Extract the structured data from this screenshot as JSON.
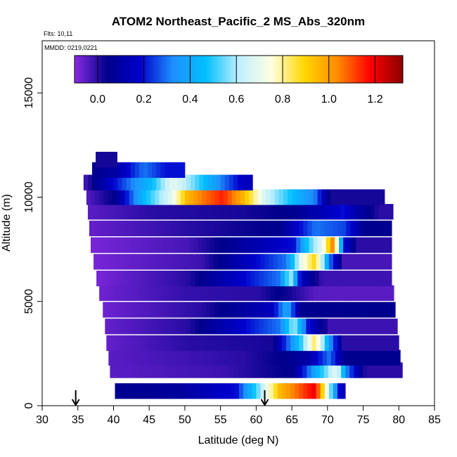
{
  "chart_data": {
    "type": "heatmap",
    "title": "ATOM2 Northeast_Pacific_2 MS_Abs_320nm",
    "annotations": [
      "Flts: 10,11",
      "MMDD: 0219,0221"
    ],
    "xlabel": "Latitude (deg N)",
    "ylabel": "Altitude (m)",
    "xlim": [
      30,
      85
    ],
    "ylim": [
      0,
      17500
    ],
    "x_ticks": [
      30,
      35,
      40,
      45,
      50,
      55,
      60,
      65,
      70,
      75,
      80,
      85
    ],
    "y_ticks": [
      0,
      5000,
      10000,
      15000
    ],
    "colorbar": {
      "range": [
        -0.1,
        1.32
      ],
      "ticks": [
        0.0,
        0.2,
        0.4,
        0.6,
        0.8,
        1.0,
        1.2
      ],
      "tick_labels": [
        "0.0",
        "0.2",
        "0.4",
        "0.6",
        "0.8",
        "1.0",
        "1.2"
      ],
      "colors": [
        "#8a2be2",
        "#00008b",
        "#0000cd",
        "#1e90ff",
        "#00bfff",
        "#bfefff",
        "#ffffe0",
        "#ffd700",
        "#ff8c00",
        "#ff0000",
        "#8b0000"
      ]
    },
    "grid": false,
    "legend": "colorbar-top",
    "arrow_markers_latitude": [
      34.7,
      61.2
    ],
    "rows": [
      {
        "alt": 700,
        "lat_start": 40.2,
        "lat_end": 72.5,
        "segments": [
          [
            40.2,
            0.05
          ],
          [
            49,
            0.08
          ],
          [
            57,
            0.2
          ],
          [
            60,
            0.55
          ],
          [
            63,
            0.95
          ],
          [
            66,
            1.1
          ],
          [
            68,
            1.2
          ],
          [
            70,
            0.6
          ],
          [
            71.5,
            0.15
          ]
        ]
      },
      {
        "alt": 1700,
        "lat_start": 39.5,
        "lat_end": 80.5,
        "segments": [
          [
            39.5,
            -0.05
          ],
          [
            55,
            -0.02
          ],
          [
            65,
            0.05
          ],
          [
            68,
            0.4
          ],
          [
            71,
            0.7
          ],
          [
            72.5,
            0.3
          ],
          [
            75,
            0.0
          ]
        ]
      },
      {
        "alt": 2300,
        "lat_start": 39.3,
        "lat_end": 80.2,
        "segments": [
          [
            39.3,
            -0.05
          ],
          [
            58,
            0.0
          ],
          [
            64,
            0.05
          ],
          [
            67,
            0.1
          ],
          [
            70,
            0.3
          ],
          [
            72,
            0.05
          ]
        ]
      },
      {
        "alt": 3000,
        "lat_start": 39.0,
        "lat_end": 80.0,
        "segments": [
          [
            39.0,
            -0.06
          ],
          [
            50,
            0.0
          ],
          [
            62,
            0.02
          ],
          [
            66,
            0.5
          ],
          [
            68,
            0.85
          ],
          [
            70,
            0.35
          ],
          [
            72,
            0.0
          ]
        ]
      },
      {
        "alt": 3800,
        "lat_start": 38.8,
        "lat_end": 79.8,
        "segments": [
          [
            38.8,
            -0.06
          ],
          [
            50,
            0.0
          ],
          [
            63,
            0.3
          ],
          [
            65,
            0.6
          ],
          [
            67,
            0.2
          ],
          [
            70,
            -0.02
          ]
        ]
      },
      {
        "alt": 4600,
        "lat_start": 38.5,
        "lat_end": 79.5,
        "segments": [
          [
            38.5,
            -0.07
          ],
          [
            52,
            0.0
          ],
          [
            62,
            0.15
          ],
          [
            64,
            0.4
          ],
          [
            66,
            0.05
          ]
        ]
      },
      {
        "alt": 5400,
        "lat_start": 38.0,
        "lat_end": 79.3,
        "segments": [
          [
            38.0,
            -0.07
          ],
          [
            50,
            -0.01
          ],
          [
            60,
            0.0
          ],
          [
            63,
            0.05
          ],
          [
            68,
            -0.05
          ]
        ]
      },
      {
        "alt": 6100,
        "lat_start": 37.6,
        "lat_end": 79.0,
        "segments": [
          [
            37.6,
            -0.08
          ],
          [
            50,
            0.0
          ],
          [
            63,
            0.3
          ],
          [
            64.5,
            0.6
          ],
          [
            66,
            0.15
          ],
          [
            69,
            -0.02
          ]
        ]
      },
      {
        "alt": 6900,
        "lat_start": 37.2,
        "lat_end": 79.0,
        "segments": [
          [
            37.2,
            -0.08
          ],
          [
            52,
            -0.02
          ],
          [
            64,
            0.3
          ],
          [
            66,
            0.7
          ],
          [
            68,
            0.9
          ],
          [
            70,
            0.3
          ],
          [
            72,
            -0.03
          ]
        ]
      },
      {
        "alt": 7700,
        "lat_start": 36.8,
        "lat_end": 79.0,
        "segments": [
          [
            36.8,
            -0.08
          ],
          [
            50,
            -0.03
          ],
          [
            65,
            0.2
          ],
          [
            67,
            0.5
          ],
          [
            69,
            0.7
          ],
          [
            70.5,
            1.05
          ],
          [
            72,
            0.2
          ],
          [
            74,
            0.0
          ]
        ]
      },
      {
        "alt": 8500,
        "lat_start": 36.6,
        "lat_end": 79.0,
        "segments": [
          [
            36.6,
            -0.06
          ],
          [
            50,
            0.0
          ],
          [
            63,
            0.05
          ],
          [
            68,
            0.3
          ],
          [
            72,
            0.25
          ],
          [
            75,
            0.05
          ]
        ]
      },
      {
        "alt": 9300,
        "lat_start": 36.4,
        "lat_end": 79.2,
        "segments": [
          [
            36.4,
            -0.05
          ],
          [
            45,
            0.0
          ],
          [
            58,
            0.02
          ],
          [
            65,
            0.05
          ],
          [
            72,
            0.2
          ],
          [
            74,
            0.1
          ],
          [
            77,
            0.0
          ]
        ]
      },
      {
        "alt": 10000,
        "lat_start": 36.2,
        "lat_end": 78.0,
        "segments": [
          [
            36.2,
            -0.04
          ],
          [
            40,
            0.05
          ],
          [
            44,
            0.45
          ],
          [
            48,
            0.7
          ],
          [
            50,
            0.95
          ],
          [
            52,
            1.05
          ],
          [
            55,
            1.15
          ],
          [
            58,
            0.95
          ],
          [
            61,
            0.65
          ],
          [
            64,
            0.5
          ],
          [
            68,
            0.3
          ],
          [
            70,
            0.02
          ]
        ]
      },
      {
        "alt": 10700,
        "lat_start": 35.8,
        "lat_end": 59.5,
        "segments": [
          [
            35.8,
            -0.02
          ],
          [
            38,
            0.1
          ],
          [
            42,
            0.3
          ],
          [
            45,
            0.45
          ],
          [
            48,
            0.7
          ],
          [
            51,
            0.55
          ],
          [
            55,
            0.3
          ],
          [
            58,
            0.15
          ]
        ]
      },
      {
        "alt": 11300,
        "lat_start": 37.0,
        "lat_end": 50.0,
        "segments": [
          [
            37.0,
            0.05
          ],
          [
            40,
            0.1
          ],
          [
            44,
            0.3
          ],
          [
            47,
            0.2
          ]
        ]
      },
      {
        "alt": 11800,
        "lat_start": 37.5,
        "lat_end": 40.5,
        "segments": [
          [
            37.5,
            0.02
          ]
        ]
      }
    ]
  }
}
